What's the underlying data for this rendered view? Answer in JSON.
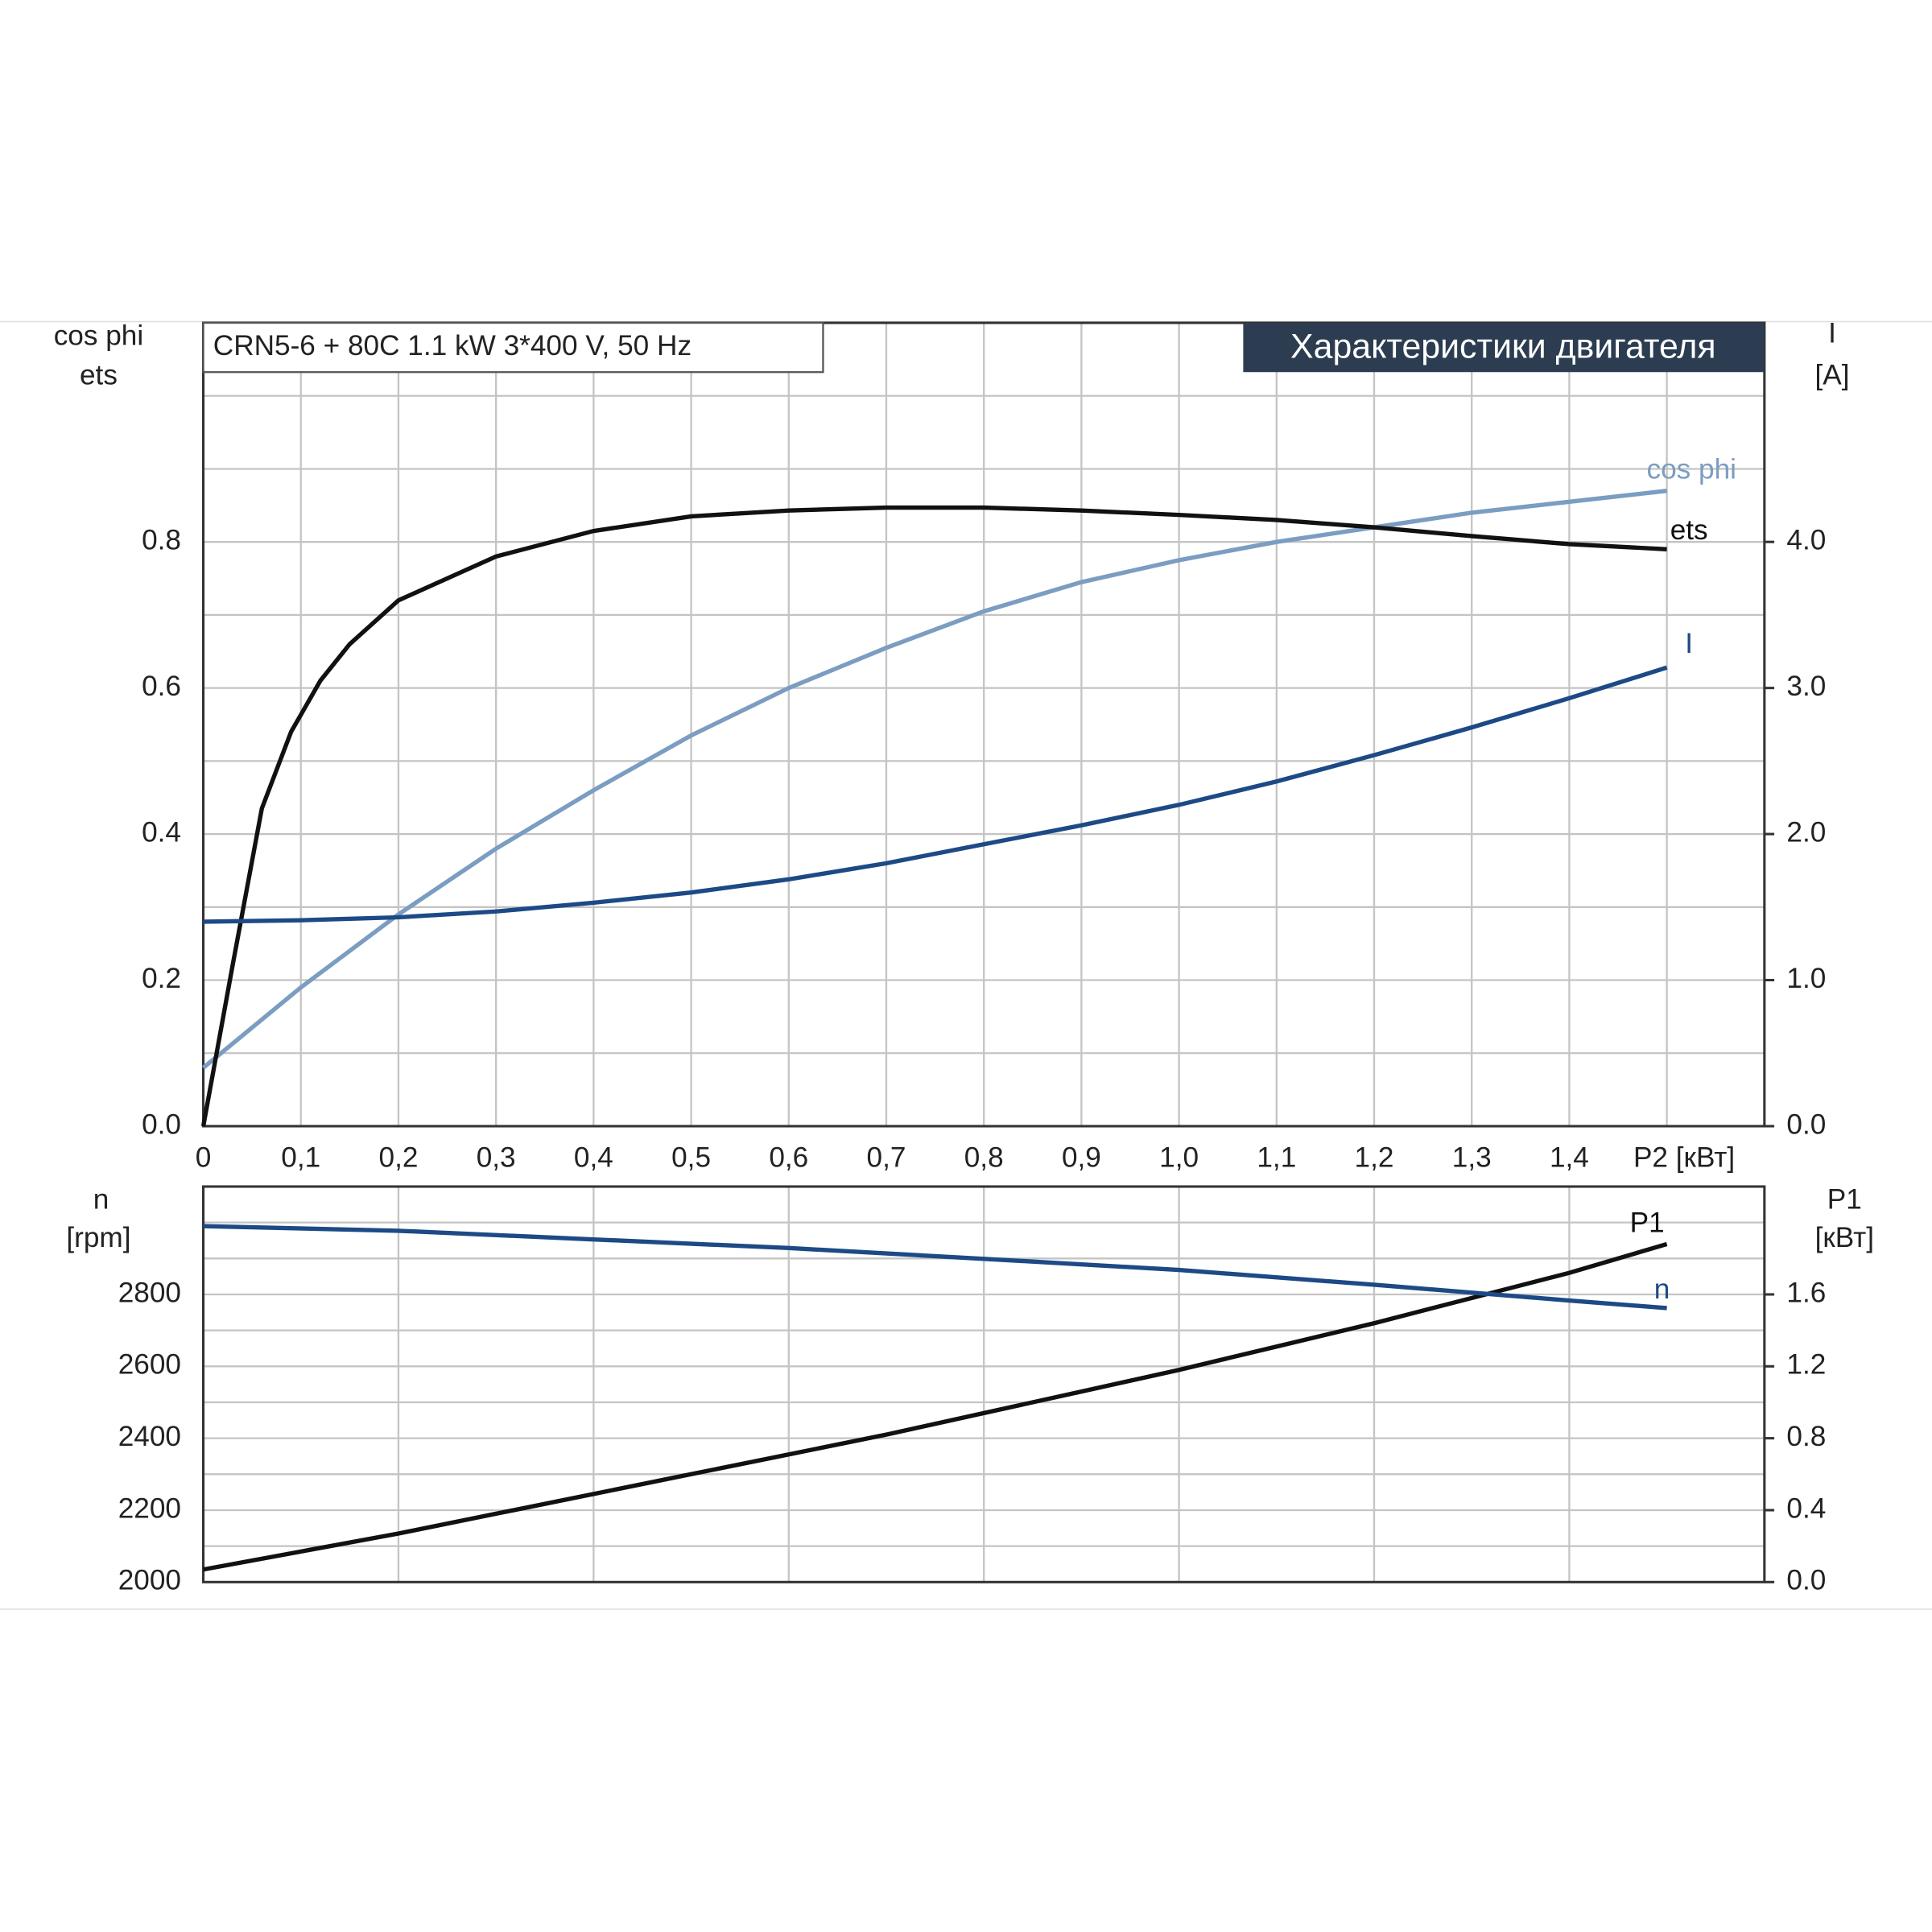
{
  "chart_data": [
    {
      "type": "line",
      "title": "Характеристики двигателя",
      "subtitle": "CRN5-6 + 80C   1.1 kW   3*400 V, 50 Hz",
      "y_label": [
        "cos phi",
        "ets"
      ],
      "y2_label": [
        "I",
        "[A]"
      ],
      "xlim": [
        0,
        1.6
      ],
      "xticks": [
        0,
        {
          "value": 0.1,
          "label": "0,1"
        },
        {
          "value": 0.2,
          "label": "0,2"
        },
        {
          "value": 0.3,
          "label": "0,3"
        },
        {
          "value": 0.4,
          "label": "0,4"
        },
        {
          "value": 0.5,
          "label": "0,5"
        },
        {
          "value": 0.6,
          "label": "0,6"
        },
        {
          "value": 0.7,
          "label": "0,7"
        },
        {
          "value": 0.8,
          "label": "0,8"
        },
        {
          "value": 0.9,
          "label": "0,9"
        },
        {
          "value": 1.0,
          "label": "1,0"
        },
        {
          "value": 1.1,
          "label": "1,1"
        },
        {
          "value": 1.2,
          "label": "1,2"
        },
        {
          "value": 1.3,
          "label": "1,3"
        },
        {
          "value": 1.4,
          "label": "1,4"
        },
        {
          "value": 1.5,
          "label": "P2 [кВт]"
        }
      ],
      "ylim": [
        0,
        1.1
      ],
      "yticks": [
        {
          "value": 0,
          "label": "0.0"
        },
        0.2,
        0.4,
        0.6,
        0.8
      ],
      "y_minor_ticks": [
        0.1,
        0.3,
        0.5,
        0.7,
        0.9,
        1.0
      ],
      "y2lim": [
        0,
        5.5
      ],
      "y2ticks": [
        {
          "value": 0,
          "label": "0.0"
        },
        {
          "value": 1,
          "label": "1.0"
        },
        {
          "value": 2,
          "label": "2.0"
        },
        {
          "value": 3,
          "label": "3.0"
        },
        {
          "value": 4,
          "label": "4.0"
        }
      ],
      "grid": true,
      "series": [
        {
          "name": "cos phi",
          "color": "#7b9dc2",
          "x": [
            0,
            0.1,
            0.2,
            0.3,
            0.4,
            0.5,
            0.6,
            0.7,
            0.8,
            0.9,
            1.0,
            1.1,
            1.2,
            1.3,
            1.4,
            1.5
          ],
          "values": [
            0.08,
            0.19,
            0.29,
            0.38,
            0.46,
            0.535,
            0.6,
            0.655,
            0.705,
            0.745,
            0.775,
            0.8,
            0.82,
            0.84,
            0.855,
            0.87
          ]
        },
        {
          "name": "ets",
          "color": "#111111",
          "x": [
            0,
            0.03,
            0.06,
            0.09,
            0.12,
            0.15,
            0.2,
            0.3,
            0.4,
            0.5,
            0.6,
            0.7,
            0.8,
            0.9,
            1.0,
            1.1,
            1.2,
            1.3,
            1.4,
            1.5
          ],
          "values": [
            0,
            0.22,
            0.435,
            0.54,
            0.61,
            0.66,
            0.72,
            0.78,
            0.815,
            0.835,
            0.843,
            0.847,
            0.847,
            0.843,
            0.837,
            0.83,
            0.82,
            0.808,
            0.797,
            0.79
          ]
        },
        {
          "name": "I",
          "color": "#1d4a86",
          "axis": "y2",
          "x": [
            0,
            0.1,
            0.2,
            0.3,
            0.4,
            0.5,
            0.6,
            0.7,
            0.8,
            0.9,
            1.0,
            1.1,
            1.2,
            1.3,
            1.4,
            1.5
          ],
          "values": [
            1.4,
            1.41,
            1.43,
            1.47,
            1.53,
            1.6,
            1.69,
            1.8,
            1.93,
            2.06,
            2.2,
            2.36,
            2.54,
            2.73,
            2.93,
            3.14
          ]
        }
      ]
    },
    {
      "type": "line",
      "y_label": [
        "n",
        "[rpm]"
      ],
      "y2_label": [
        "P1",
        "[кВт]"
      ],
      "xlim": [
        0,
        1.6
      ],
      "x_grid": [
        0.2,
        0.4,
        0.6,
        0.8,
        1.0,
        1.2,
        1.4
      ],
      "ylim": [
        2000,
        3100
      ],
      "yticks": [
        2000,
        2200,
        2400,
        2600,
        2800
      ],
      "y_minor_ticks": [
        2100,
        2300,
        2500,
        2700,
        2900,
        3000
      ],
      "y2lim": [
        0,
        2.2
      ],
      "y2ticks": [
        {
          "value": 0,
          "label": "0.0"
        },
        0.4,
        0.8,
        1.2,
        1.6
      ],
      "grid": true,
      "series": [
        {
          "name": "P1",
          "color": "#111111",
          "axis": "y2",
          "x": [
            0,
            0.1,
            0.2,
            0.3,
            0.4,
            0.5,
            0.6,
            0.7,
            0.8,
            0.9,
            1.0,
            1.1,
            1.2,
            1.3,
            1.4,
            1.5
          ],
          "values": [
            0.07,
            0.17,
            0.27,
            0.38,
            0.49,
            0.6,
            0.71,
            0.82,
            0.94,
            1.06,
            1.18,
            1.31,
            1.44,
            1.58,
            1.72,
            1.88
          ]
        },
        {
          "name": "n",
          "color": "#1d4a86",
          "x": [
            0,
            0.2,
            0.4,
            0.6,
            0.8,
            1.0,
            1.2,
            1.4,
            1.5
          ],
          "values": [
            2990,
            2977,
            2953,
            2929,
            2899,
            2868,
            2827,
            2783,
            2762
          ]
        }
      ]
    }
  ]
}
